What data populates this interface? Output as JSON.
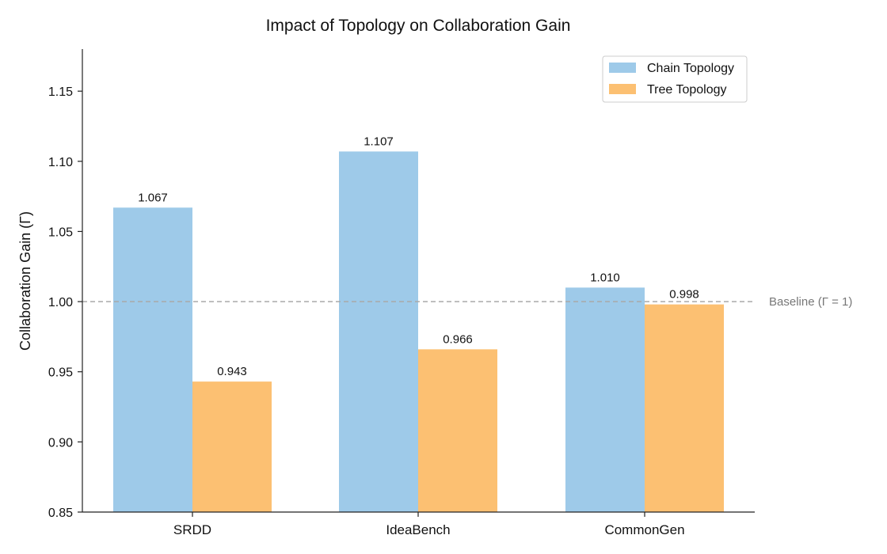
{
  "chart_data": {
    "type": "bar",
    "title": "Impact of Topology on Collaboration Gain",
    "xlabel": "",
    "ylabel": "Collaboration Gain (Γ)",
    "categories": [
      "SRDD",
      "IdeaBench",
      "CommonGen"
    ],
    "series": [
      {
        "name": "Chain Topology",
        "color": "#9ecae9",
        "values": [
          1.067,
          1.107,
          1.01
        ],
        "labels": [
          "1.067",
          "1.107",
          "1.010"
        ]
      },
      {
        "name": "Tree Topology",
        "color": "#fcc072",
        "values": [
          0.943,
          0.966,
          0.998
        ],
        "labels": [
          "0.943",
          "0.966",
          "0.998"
        ]
      }
    ],
    "ylim": [
      0.85,
      1.18
    ],
    "yticks": [
      0.85,
      0.9,
      0.95,
      1.0,
      1.05,
      1.1,
      1.15
    ],
    "ytick_labels": [
      "0.85",
      "0.90",
      "0.95",
      "1.00",
      "1.05",
      "1.10",
      "1.15"
    ],
    "baseline": {
      "value": 1.0,
      "label": "Baseline (Γ = 1)",
      "color": "#a9a9a9"
    },
    "legend_position": "top-right",
    "grid": false
  }
}
